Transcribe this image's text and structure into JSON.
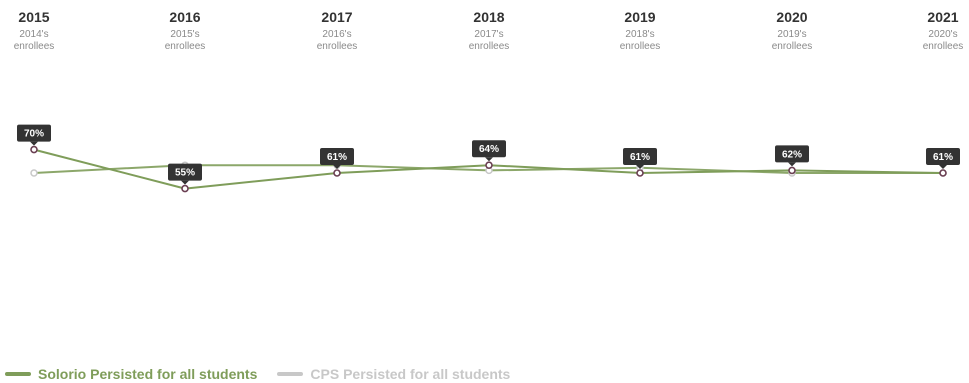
{
  "colors": {
    "solorio": "#7f9d5a",
    "cps": "#c8c8c8",
    "label_bg": "#333333",
    "label_text": "#ffffff",
    "marker_stroke": "#6a3f52",
    "year_text": "#333333",
    "sub_text": "#8a8a8a"
  },
  "legend": {
    "solorio_label": "Solorio Persisted for all students",
    "cps_label": "CPS Persisted for all students"
  },
  "chart_data": {
    "type": "line",
    "categories": [
      "2015",
      "2016",
      "2017",
      "2018",
      "2019",
      "2020",
      "2021"
    ],
    "category_subtitles": [
      [
        "2014's",
        "enrollees"
      ],
      [
        "2015's",
        "enrollees"
      ],
      [
        "2016's",
        "enrollees"
      ],
      [
        "2017's",
        "enrollees"
      ],
      [
        "2018's",
        "enrollees"
      ],
      [
        "2019's",
        "enrollees"
      ],
      [
        "2020's",
        "enrollees"
      ]
    ],
    "series": [
      {
        "name": "Solorio Persisted for all students",
        "values": [
          70,
          55,
          61,
          64,
          61,
          62,
          61
        ],
        "labels": [
          "70%",
          "55%",
          "61%",
          "64%",
          "61%",
          "62%",
          "61%"
        ]
      },
      {
        "name": "CPS Persisted for all students",
        "values": [
          61,
          64,
          64,
          62,
          63,
          61,
          61
        ]
      }
    ],
    "ylim": [
      0,
      100
    ],
    "grid": false,
    "legend_position": "bottom-left"
  }
}
